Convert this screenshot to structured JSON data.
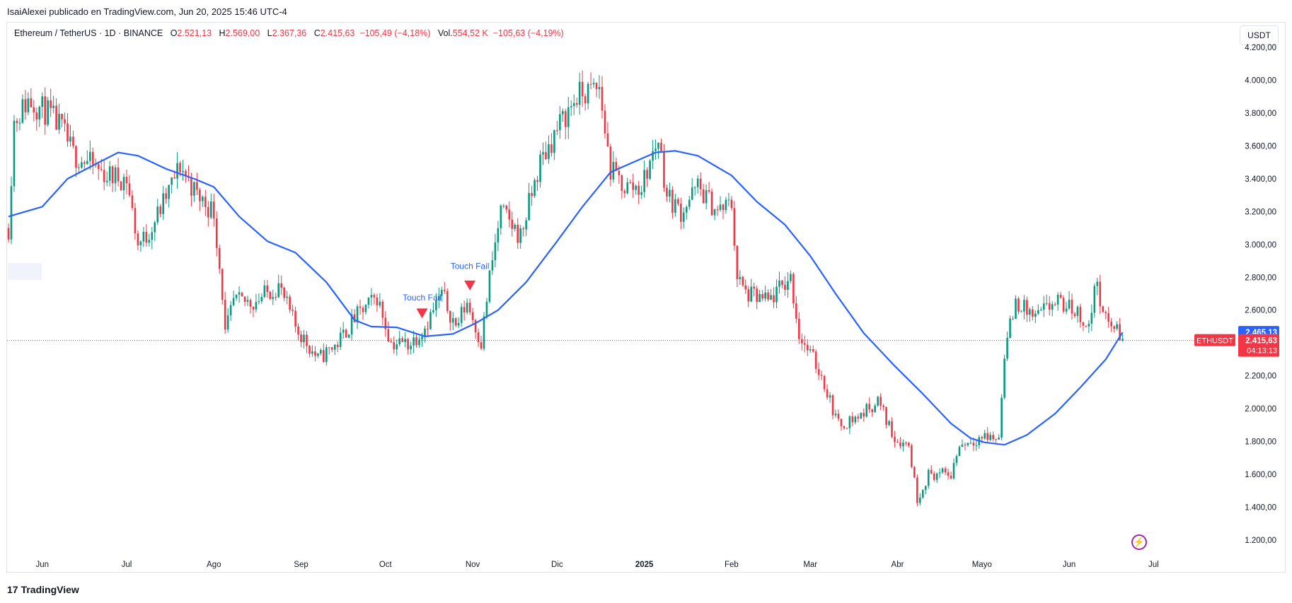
{
  "header": {
    "published": "IsaiAlexei publicado en TradingView.com, Jun 20, 2025 15:46 UTC-4"
  },
  "legend": {
    "symbol": "Ethereum / TetherUS · 1D · BINANCE",
    "o_label": "O",
    "o_value": "2.521,13",
    "h_label": "H",
    "h_value": "2.569,00",
    "l_label": "L",
    "l_value": "2.367,36",
    "c_label": "C",
    "c_value": "2.415,63",
    "change": "−105,49 (−4,18%)",
    "vol_label": "Vol.",
    "vol_value": "554,52 K",
    "vol_change": "−105,63 (−4,19%)"
  },
  "currency_button": "USDT",
  "footer": {
    "brand": "TradingView",
    "logo": "17"
  },
  "colors": {
    "up": "#089981",
    "down": "#f23645",
    "ma": "#2962ff",
    "price_line": "#f23645",
    "annotation": "#2962ff",
    "marker": "#f23645"
  },
  "chart_data": {
    "type": "candlestick",
    "symbol": "ETHUSDT",
    "interval": "1D",
    "ylim": [
      1100,
      4250
    ],
    "y_ticks": [
      {
        "value": 1200,
        "label": "1.200,00"
      },
      {
        "value": 1400,
        "label": "1.400,00"
      },
      {
        "value": 1600,
        "label": "1.600,00"
      },
      {
        "value": 1800,
        "label": "1.800,00"
      },
      {
        "value": 2000,
        "label": "2.000,00"
      },
      {
        "value": 2200,
        "label": "2.200,00"
      },
      {
        "value": 2400,
        "label": "2.400,00"
      },
      {
        "value": 2600,
        "label": "2.600,00"
      },
      {
        "value": 2800,
        "label": "2.800,00"
      },
      {
        "value": 3000,
        "label": "3.000,00"
      },
      {
        "value": 3200,
        "label": "3.200,00"
      },
      {
        "value": 3400,
        "label": "3.400,00"
      },
      {
        "value": 3600,
        "label": "3.600,00"
      },
      {
        "value": 3800,
        "label": "3.800,00"
      },
      {
        "value": 4000,
        "label": "4.000,00"
      },
      {
        "value": 4200,
        "label": "4.200,00"
      }
    ],
    "x_ticks": [
      {
        "label": "Jun",
        "date": "2024-06-01",
        "bold": false
      },
      {
        "label": "Jul",
        "date": "2024-07-01",
        "bold": false
      },
      {
        "label": "Ago",
        "date": "2024-08-01",
        "bold": false
      },
      {
        "label": "Sep",
        "date": "2024-09-01",
        "bold": false
      },
      {
        "label": "Oct",
        "date": "2024-10-01",
        "bold": false
      },
      {
        "label": "Nov",
        "date": "2024-11-01",
        "bold": false
      },
      {
        "label": "Dic",
        "date": "2024-12-01",
        "bold": false
      },
      {
        "label": "2025",
        "date": "2025-01-01",
        "bold": true
      },
      {
        "label": "Feb",
        "date": "2025-02-01",
        "bold": false
      },
      {
        "label": "Mar",
        "date": "2025-03-01",
        "bold": false
      },
      {
        "label": "Abr",
        "date": "2025-04-01",
        "bold": false
      },
      {
        "label": "Mayo",
        "date": "2025-05-01",
        "bold": false
      },
      {
        "label": "Jun",
        "date": "2025-06-01",
        "bold": false
      },
      {
        "label": "Jul",
        "date": "2025-07-01",
        "bold": false
      }
    ],
    "price_path": [
      [
        "2024-05-20",
        3100
      ],
      [
        "2024-05-22",
        3750
      ],
      [
        "2024-05-27",
        3880
      ],
      [
        "2024-06-03",
        3800
      ],
      [
        "2024-06-08",
        3700
      ],
      [
        "2024-06-12",
        3550
      ],
      [
        "2024-06-17",
        3500
      ],
      [
        "2024-06-24",
        3420
      ],
      [
        "2024-07-01",
        3400
      ],
      [
        "2024-07-05",
        3000
      ],
      [
        "2024-07-08",
        3050
      ],
      [
        "2024-07-14",
        3250
      ],
      [
        "2024-07-20",
        3480
      ],
      [
        "2024-07-26",
        3300
      ],
      [
        "2024-08-01",
        3200
      ],
      [
        "2024-08-04",
        2700
      ],
      [
        "2024-08-05",
        2450
      ],
      [
        "2024-08-08",
        2650
      ],
      [
        "2024-08-15",
        2650
      ],
      [
        "2024-08-24",
        2750
      ],
      [
        "2024-08-30",
        2500
      ],
      [
        "2024-09-07",
        2300
      ],
      [
        "2024-09-14",
        2400
      ],
      [
        "2024-09-20",
        2550
      ],
      [
        "2024-09-28",
        2680
      ],
      [
        "2024-10-03",
        2400
      ],
      [
        "2024-10-10",
        2400
      ],
      [
        "2024-10-15",
        2500
      ],
      [
        "2024-10-21",
        2700
      ],
      [
        "2024-10-26",
        2500
      ],
      [
        "2024-10-30",
        2650
      ],
      [
        "2024-11-04",
        2400
      ],
      [
        "2024-11-07",
        2800
      ],
      [
        "2024-11-11",
        3200
      ],
      [
        "2024-11-18",
        3050
      ],
      [
        "2024-11-25",
        3500
      ],
      [
        "2024-12-01",
        3700
      ],
      [
        "2024-12-08",
        3900
      ],
      [
        "2024-12-16",
        3950
      ],
      [
        "2024-12-20",
        3450
      ],
      [
        "2024-12-25",
        3350
      ],
      [
        "2024-12-31",
        3350
      ],
      [
        "2025-01-06",
        3650
      ],
      [
        "2025-01-09",
        3300
      ],
      [
        "2025-01-14",
        3200
      ],
      [
        "2025-01-20",
        3350
      ],
      [
        "2025-01-27",
        3200
      ],
      [
        "2025-02-01",
        3250
      ],
      [
        "2025-02-03",
        2800
      ],
      [
        "2025-02-06",
        2700
      ],
      [
        "2025-02-14",
        2650
      ],
      [
        "2025-02-22",
        2800
      ],
      [
        "2025-02-25",
        2450
      ],
      [
        "2025-03-02",
        2300
      ],
      [
        "2025-03-05",
        2200
      ],
      [
        "2025-03-11",
        1900
      ],
      [
        "2025-03-18",
        1950
      ],
      [
        "2025-03-25",
        2050
      ],
      [
        "2025-03-31",
        1820
      ],
      [
        "2025-04-05",
        1780
      ],
      [
        "2025-04-08",
        1450
      ],
      [
        "2025-04-12",
        1600
      ],
      [
        "2025-04-20",
        1600
      ],
      [
        "2025-04-23",
        1780
      ],
      [
        "2025-05-01",
        1830
      ],
      [
        "2025-05-07",
        1820
      ],
      [
        "2025-05-09",
        2350
      ],
      [
        "2025-05-13",
        2650
      ],
      [
        "2025-05-20",
        2550
      ],
      [
        "2025-05-27",
        2650
      ],
      [
        "2025-06-03",
        2600
      ],
      [
        "2025-06-08",
        2500
      ],
      [
        "2025-06-11",
        2800
      ],
      [
        "2025-06-13",
        2550
      ],
      [
        "2025-06-17",
        2500
      ],
      [
        "2025-06-20",
        2415
      ]
    ],
    "ma_series": {
      "points": [
        [
          "2024-05-20",
          3170
        ],
        [
          "2024-06-01",
          3230
        ],
        [
          "2024-06-10",
          3400
        ],
        [
          "2024-06-20",
          3490
        ],
        [
          "2024-06-28",
          3560
        ],
        [
          "2024-07-05",
          3540
        ],
        [
          "2024-07-15",
          3460
        ],
        [
          "2024-07-25",
          3400
        ],
        [
          "2024-08-01",
          3350
        ],
        [
          "2024-08-10",
          3170
        ],
        [
          "2024-08-20",
          3020
        ],
        [
          "2024-08-30",
          2950
        ],
        [
          "2024-09-10",
          2770
        ],
        [
          "2024-09-20",
          2540
        ],
        [
          "2024-09-26",
          2500
        ],
        [
          "2024-10-05",
          2495
        ],
        [
          "2024-10-15",
          2440
        ],
        [
          "2024-10-25",
          2455
        ],
        [
          "2024-11-02",
          2520
        ],
        [
          "2024-11-10",
          2600
        ],
        [
          "2024-11-20",
          2770
        ],
        [
          "2024-12-01",
          3020
        ],
        [
          "2024-12-10",
          3230
        ],
        [
          "2024-12-20",
          3440
        ],
        [
          "2024-12-28",
          3500
        ],
        [
          "2025-01-05",
          3560
        ],
        [
          "2025-01-12",
          3570
        ],
        [
          "2025-01-20",
          3540
        ],
        [
          "2025-02-01",
          3420
        ],
        [
          "2025-02-10",
          3260
        ],
        [
          "2025-02-20",
          3120
        ],
        [
          "2025-03-01",
          2930
        ],
        [
          "2025-03-10",
          2700
        ],
        [
          "2025-03-20",
          2460
        ],
        [
          "2025-03-31",
          2260
        ],
        [
          "2025-04-10",
          2090
        ],
        [
          "2025-04-20",
          1910
        ],
        [
          "2025-04-27",
          1820
        ],
        [
          "2025-05-02",
          1795
        ],
        [
          "2025-05-09",
          1780
        ],
        [
          "2025-05-17",
          1840
        ],
        [
          "2025-05-27",
          1970
        ],
        [
          "2025-06-05",
          2130
        ],
        [
          "2025-06-14",
          2300
        ],
        [
          "2025-06-20",
          2465
        ]
      ]
    },
    "annotations": [
      {
        "text": "Touch Fail",
        "date": "2024-10-14",
        "price": 2660
      },
      {
        "text": "Touch Fail",
        "date": "2024-10-31",
        "price": 2850
      }
    ],
    "markers": [
      {
        "shape": "triangle-down",
        "date": "2024-10-14",
        "price": 2580
      },
      {
        "shape": "triangle-down",
        "date": "2024-10-31",
        "price": 2750
      }
    ],
    "last_price": {
      "symbol": "ETHUSDT",
      "price": 2415.63,
      "price_label": "2.415,63",
      "countdown": "04:13:13"
    },
    "ma_last": {
      "price": 2465.13,
      "label": "2.465,13"
    }
  }
}
